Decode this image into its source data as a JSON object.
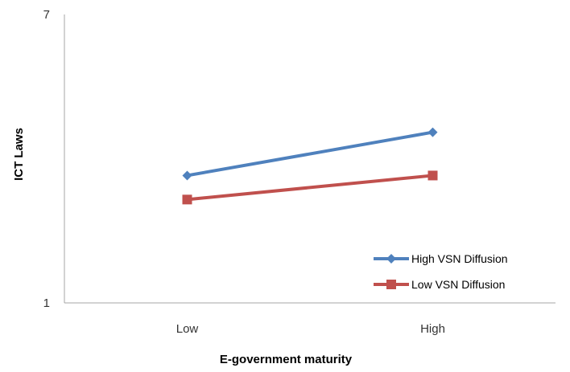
{
  "chart_data": {
    "type": "line",
    "categories": [
      "Low",
      "High"
    ],
    "series": [
      {
        "name": "High VSN Diffusion",
        "values": [
          3.65,
          4.55
        ],
        "color": "#4f81bd",
        "marker": "diamond"
      },
      {
        "name": "Low VSN Diffusion",
        "values": [
          3.15,
          3.65
        ],
        "color": "#c0504d",
        "marker": "square"
      }
    ],
    "xlabel": "E-government maturity",
    "ylabel": "ICT Laws",
    "ylim": [
      1,
      7
    ],
    "yticks": [
      "1",
      "7"
    ],
    "grid": false,
    "legend_position": "bottom-right"
  }
}
